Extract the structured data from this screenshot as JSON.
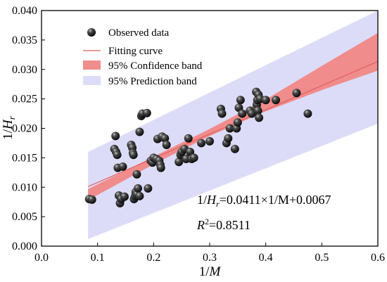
{
  "chart_data": {
    "type": "scatter",
    "xlabel": "1/M",
    "ylabel": "1/H_r",
    "xlim": [
      0.0,
      0.6
    ],
    "ylim": [
      0.0,
      0.04
    ],
    "x_ticks": [
      "0.0",
      "0.1",
      "0.2",
      "0.3",
      "0.4",
      "0.5",
      "0.6"
    ],
    "y_ticks": [
      "0.000",
      "0.005",
      "0.010",
      "0.015",
      "0.020",
      "0.025",
      "0.030",
      "0.035",
      "0.040"
    ],
    "legend": {
      "placement": "top-left",
      "entries": [
        "Observed data",
        "Fitting curve",
        "95% Confidence band",
        "95% Prediction band"
      ]
    },
    "annotations": {
      "equation_lhs": "1/",
      "equation_var": "H",
      "equation_sub": "r",
      "equation_rhs": "=0.0411×1/M+0.0067",
      "r2_var": "R",
      "r2_sup": "2",
      "r2_rhs": "=0.8511"
    },
    "fit": {
      "slope": 0.0411,
      "intercept": 0.0067,
      "x_range": [
        0.083,
        0.6
      ]
    },
    "confidence_band": {
      "x": [
        0.083,
        0.2,
        0.3,
        0.4,
        0.5,
        0.6
      ],
      "lower": [
        0.0078,
        0.0139,
        0.0187,
        0.0229,
        0.0265,
        0.0298
      ],
      "upper": [
        0.0097,
        0.0152,
        0.0199,
        0.0249,
        0.0306,
        0.0362
      ]
    },
    "prediction_band": {
      "x": [
        0.083,
        0.6
      ],
      "lower": [
        0.0012,
        0.0208
      ],
      "upper": [
        0.016,
        0.04
      ]
    },
    "colors": {
      "points": "#1a1a1a",
      "fit_line": "#e05a5a",
      "confidence_band": "#f08c8c",
      "prediction_band": "#dcdcf8"
    },
    "series": [
      {
        "points": [
          [
            0.085,
            0.008
          ],
          [
            0.09,
            0.0079
          ],
          [
            0.13,
            0.0165
          ],
          [
            0.132,
            0.0187
          ],
          [
            0.133,
            0.016
          ],
          [
            0.135,
            0.0155
          ],
          [
            0.136,
            0.0133
          ],
          [
            0.138,
            0.0086
          ],
          [
            0.14,
            0.0073
          ],
          [
            0.142,
            0.008
          ],
          [
            0.145,
            0.0135
          ],
          [
            0.148,
            0.0084
          ],
          [
            0.16,
            0.0172
          ],
          [
            0.162,
            0.0167
          ],
          [
            0.163,
            0.0158
          ],
          [
            0.164,
            0.0155
          ],
          [
            0.165,
            0.008
          ],
          [
            0.167,
            0.0085
          ],
          [
            0.168,
            0.0092
          ],
          [
            0.17,
            0.0088
          ],
          [
            0.17,
            0.0122
          ],
          [
            0.172,
            0.0098
          ],
          [
            0.175,
            0.0194
          ],
          [
            0.175,
            0.0085
          ],
          [
            0.178,
            0.0221
          ],
          [
            0.18,
            0.0225
          ],
          [
            0.188,
            0.0226
          ],
          [
            0.19,
            0.0098
          ],
          [
            0.195,
            0.0145
          ],
          [
            0.198,
            0.0142
          ],
          [
            0.2,
            0.015
          ],
          [
            0.205,
            0.0148
          ],
          [
            0.207,
            0.0182
          ],
          [
            0.21,
            0.0145
          ],
          [
            0.212,
            0.0138
          ],
          [
            0.213,
            0.0133
          ],
          [
            0.215,
            0.0186
          ],
          [
            0.22,
            0.0183
          ],
          [
            0.223,
            0.0172
          ],
          [
            0.245,
            0.0143
          ],
          [
            0.248,
            0.0155
          ],
          [
            0.25,
            0.016
          ],
          [
            0.255,
            0.0165
          ],
          [
            0.258,
            0.0148
          ],
          [
            0.262,
            0.0183
          ],
          [
            0.265,
            0.016
          ],
          [
            0.268,
            0.0148
          ],
          [
            0.272,
            0.015
          ],
          [
            0.285,
            0.0175
          ],
          [
            0.3,
            0.0178
          ],
          [
            0.32,
            0.0233
          ],
          [
            0.322,
            0.0225
          ],
          [
            0.33,
            0.0175
          ],
          [
            0.333,
            0.0183
          ],
          [
            0.336,
            0.02
          ],
          [
            0.345,
            0.0165
          ],
          [
            0.348,
            0.02
          ],
          [
            0.35,
            0.021
          ],
          [
            0.352,
            0.0235
          ],
          [
            0.355,
            0.0248
          ],
          [
            0.358,
            0.0225
          ],
          [
            0.372,
            0.023
          ],
          [
            0.375,
            0.0225
          ],
          [
            0.383,
            0.0262
          ],
          [
            0.384,
            0.024
          ],
          [
            0.385,
            0.0248
          ],
          [
            0.386,
            0.023
          ],
          [
            0.387,
            0.0257
          ],
          [
            0.388,
            0.0218
          ],
          [
            0.39,
            0.025
          ],
          [
            0.4,
            0.0248
          ],
          [
            0.418,
            0.0248
          ],
          [
            0.455,
            0.026
          ],
          [
            0.475,
            0.0225
          ]
        ]
      }
    ]
  }
}
